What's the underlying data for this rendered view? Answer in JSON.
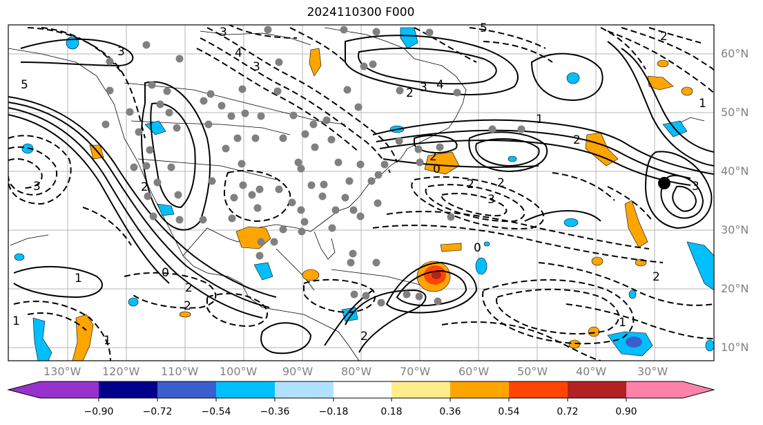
{
  "title": "2024110300 F000",
  "map": {
    "lon_labels": [
      "130°W",
      "120°W",
      "110°W",
      "100°W",
      "90°W",
      "80°W",
      "70°W",
      "60°W",
      "50°W",
      "40°W",
      "30°W"
    ],
    "lat_labels": [
      "60°N",
      "50°N",
      "40°N",
      "30°N",
      "20°N",
      "10°N"
    ],
    "contour_labels": [
      "3",
      "4",
      "3",
      "5",
      "3",
      "2",
      "3",
      "4",
      "5",
      "1",
      "2",
      "2",
      "1",
      "2",
      "0",
      "2",
      "2",
      "3",
      "2",
      "0",
      "2",
      "2",
      "3",
      "3",
      "1",
      "0",
      "2",
      "1",
      "2",
      "1",
      "1"
    ]
  },
  "colorbar": {
    "ticks": [
      "−0.90",
      "−0.72",
      "−0.54",
      "−0.36",
      "−0.18",
      "0.18",
      "0.36",
      "0.54",
      "0.72",
      "0.90"
    ],
    "colors": [
      "#9932cc",
      "#00008b",
      "#3a5fcd",
      "#00bfff",
      "#b0e2ff",
      "#ffffff",
      "#ffec8b",
      "#ffa500",
      "#ff4500",
      "#b22222",
      "#ff82ab"
    ]
  },
  "icons": [
    "station-dot",
    "storm-center-marker"
  ]
}
